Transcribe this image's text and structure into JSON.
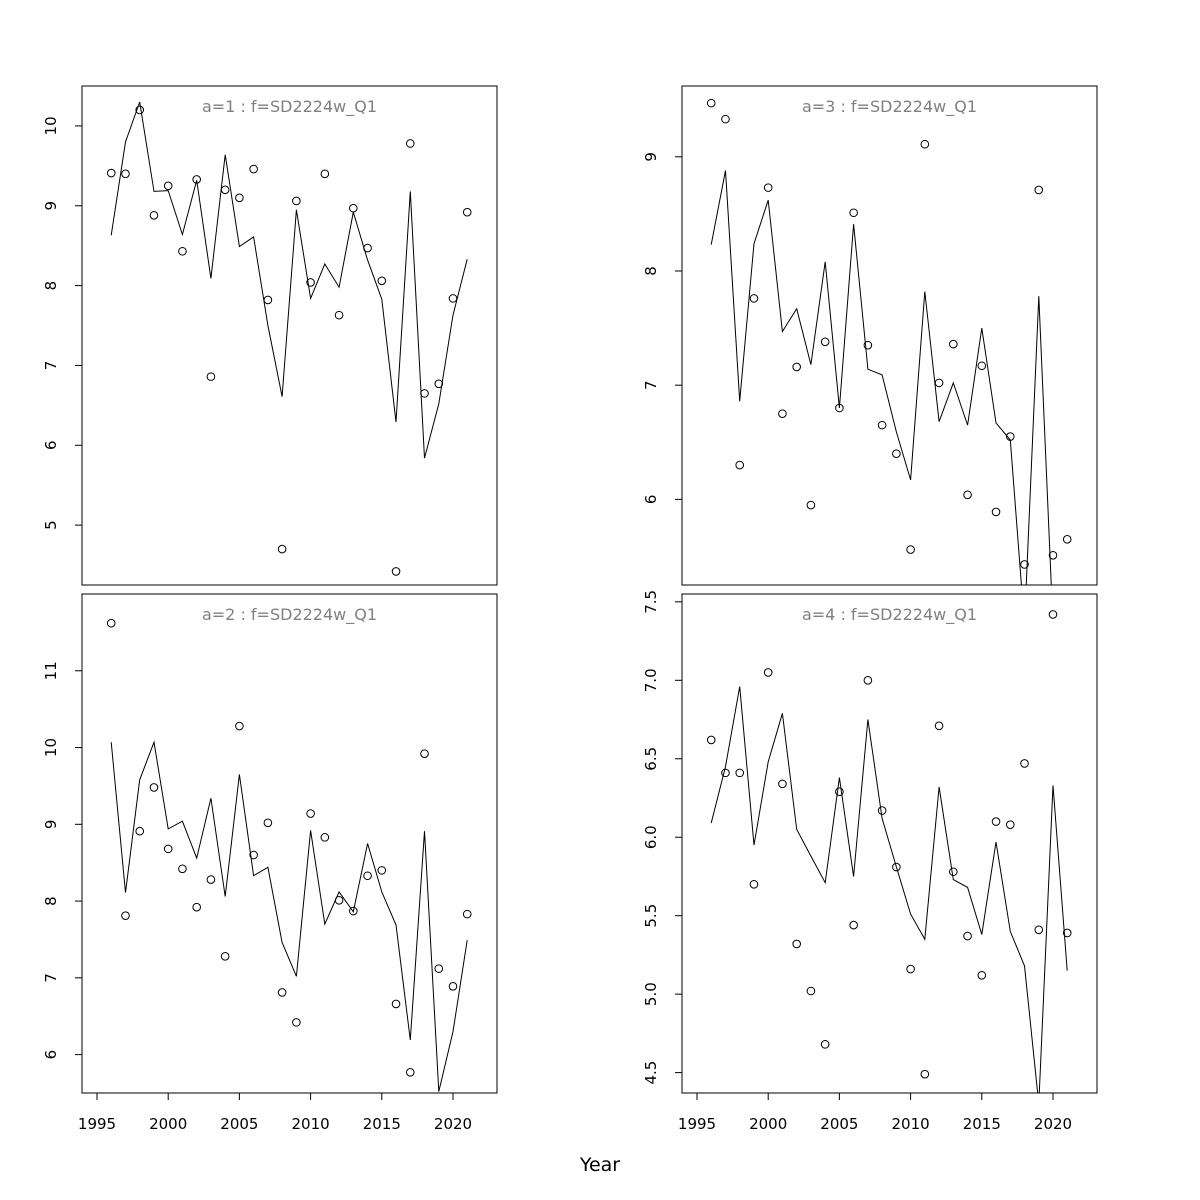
{
  "figure": {
    "xlabel": "Year",
    "colors": {
      "axis": "#000000",
      "title": "#808080",
      "line": "#000000",
      "points": "#000000",
      "background": "#ffffff"
    }
  },
  "chart_data": [
    {
      "type": "line",
      "panel": "top-left",
      "title": "a=1  :  f=SD2224w_Q1",
      "xlabel": "",
      "ylabel": "",
      "xlim": [
        1996,
        2021
      ],
      "ylim": [
        4.25,
        10.5
      ],
      "xticks": [],
      "yticks": [
        5,
        6,
        7,
        8,
        9,
        10
      ],
      "x": [
        1996,
        1997,
        1998,
        1999,
        2000,
        2001,
        2002,
        2003,
        2004,
        2005,
        2006,
        2007,
        2008,
        2009,
        2010,
        2011,
        2012,
        2013,
        2014,
        2015,
        2016,
        2017,
        2018,
        2019,
        2020,
        2021
      ],
      "series": [
        {
          "name": "",
          "kind": "points",
          "values": [
            9.41,
            9.4,
            10.2,
            8.88,
            9.25,
            8.43,
            9.33,
            6.86,
            9.2,
            9.1,
            9.46,
            7.82,
            4.7,
            9.06,
            8.04,
            9.4,
            7.63,
            8.97,
            8.47,
            8.06,
            4.42,
            9.78,
            6.65,
            6.77,
            7.84,
            8.92
          ]
        },
        {
          "name": "",
          "kind": "line",
          "values": [
            8.63,
            9.8,
            10.3,
            9.18,
            9.19,
            8.64,
            9.32,
            8.09,
            9.64,
            8.49,
            8.61,
            7.5,
            6.61,
            8.95,
            7.84,
            8.27,
            7.98,
            8.92,
            8.32,
            7.83,
            6.29,
            9.18,
            5.84,
            6.52,
            7.63,
            8.33
          ]
        }
      ]
    },
    {
      "type": "line",
      "panel": "bottom-left",
      "title": "a=2  :  f=SD2224w_Q1",
      "xlabel": "",
      "ylabel": "",
      "xlim": [
        1996,
        2021
      ],
      "ylim": [
        5.5,
        12.0
      ],
      "xticks": [
        1995,
        2000,
        2005,
        2010,
        2015,
        2020
      ],
      "yticks": [
        6,
        7,
        8,
        9,
        10,
        11
      ],
      "x": [
        1996,
        1997,
        1998,
        1999,
        2000,
        2001,
        2002,
        2003,
        2004,
        2005,
        2006,
        2007,
        2008,
        2009,
        2010,
        2011,
        2012,
        2013,
        2014,
        2015,
        2016,
        2017,
        2018,
        2019,
        2020,
        2021
      ],
      "series": [
        {
          "name": "",
          "kind": "points",
          "values": [
            11.62,
            7.81,
            8.91,
            9.48,
            8.68,
            8.42,
            7.92,
            8.28,
            7.28,
            10.28,
            8.6,
            9.02,
            6.81,
            6.42,
            9.14,
            8.83,
            8.01,
            7.87,
            8.33,
            8.4,
            6.66,
            5.77,
            9.92,
            7.12,
            6.89,
            7.83
          ]
        },
        {
          "name": "",
          "kind": "line",
          "values": [
            10.07,
            8.11,
            9.58,
            10.07,
            8.94,
            9.04,
            8.56,
            9.34,
            8.06,
            9.65,
            8.33,
            8.44,
            7.46,
            7.02,
            8.92,
            7.7,
            8.12,
            7.86,
            8.75,
            8.12,
            7.69,
            6.19,
            8.91,
            5.52,
            6.3,
            7.49
          ]
        }
      ]
    },
    {
      "type": "line",
      "panel": "top-right",
      "title": "a=3  :  f=SD2224w_Q1",
      "xlabel": "",
      "ylabel": "",
      "xlim": [
        1996,
        2021
      ],
      "ylim": [
        5.25,
        9.62
      ],
      "xticks": [],
      "yticks": [
        6,
        7,
        8,
        9
      ],
      "x": [
        1996,
        1997,
        1998,
        1999,
        2000,
        2001,
        2002,
        2003,
        2004,
        2005,
        2006,
        2007,
        2008,
        2009,
        2010,
        2011,
        2012,
        2013,
        2014,
        2015,
        2016,
        2017,
        2018,
        2019,
        2020,
        2021
      ],
      "series": [
        {
          "name": "",
          "kind": "points",
          "values": [
            9.47,
            9.33,
            6.3,
            7.76,
            8.73,
            6.75,
            7.16,
            5.95,
            7.38,
            6.8,
            8.51,
            7.35,
            6.65,
            6.4,
            5.56,
            9.11,
            7.02,
            7.36,
            6.04,
            7.17,
            5.89,
            6.55,
            5.43,
            8.71,
            5.51,
            5.65
          ]
        },
        {
          "name": "",
          "kind": "line",
          "values": [
            8.23,
            8.88,
            6.86,
            8.24,
            8.62,
            7.47,
            7.67,
            7.18,
            8.08,
            6.8,
            8.41,
            7.14,
            7.09,
            6.59,
            6.17,
            7.82,
            6.68,
            7.02,
            6.65,
            7.5,
            6.67,
            6.52,
            4.9,
            7.78,
            4.9,
            null
          ]
        }
      ]
    },
    {
      "type": "line",
      "panel": "bottom-right",
      "title": "a=4  :  f=SD2224w_Q1",
      "xlabel": "",
      "ylabel": "",
      "xlim": [
        1996,
        2021
      ],
      "ylim": [
        4.37,
        7.55
      ],
      "xticks": [
        1995,
        2000,
        2005,
        2010,
        2015,
        2020
      ],
      "yticks": [
        4.5,
        5.0,
        5.5,
        6.0,
        6.5,
        7.0,
        7.5
      ],
      "ytick_labels": [
        "4.5",
        "5.0",
        "5.5",
        "6.0",
        "6.5",
        "7.0",
        "7.5"
      ],
      "x": [
        1996,
        1997,
        1998,
        1999,
        2000,
        2001,
        2002,
        2003,
        2004,
        2005,
        2006,
        2007,
        2008,
        2009,
        2010,
        2011,
        2012,
        2013,
        2014,
        2015,
        2016,
        2017,
        2018,
        2019,
        2020,
        2021
      ],
      "series": [
        {
          "name": "",
          "kind": "points",
          "values": [
            6.62,
            6.41,
            6.41,
            5.7,
            7.05,
            6.34,
            5.32,
            5.02,
            4.68,
            6.29,
            5.44,
            7.0,
            6.17,
            5.81,
            5.16,
            4.49,
            6.71,
            5.78,
            5.37,
            5.12,
            6.1,
            6.08,
            6.47,
            5.41,
            7.42,
            5.39
          ]
        },
        {
          "name": "",
          "kind": "line",
          "values": [
            6.09,
            6.45,
            6.96,
            5.95,
            6.48,
            6.79,
            6.05,
            5.88,
            5.71,
            6.38,
            5.75,
            6.75,
            6.12,
            5.81,
            5.51,
            5.35,
            6.32,
            5.73,
            5.68,
            5.38,
            5.97,
            5.4,
            5.18,
            4.3,
            6.33,
            5.15
          ]
        }
      ]
    }
  ]
}
